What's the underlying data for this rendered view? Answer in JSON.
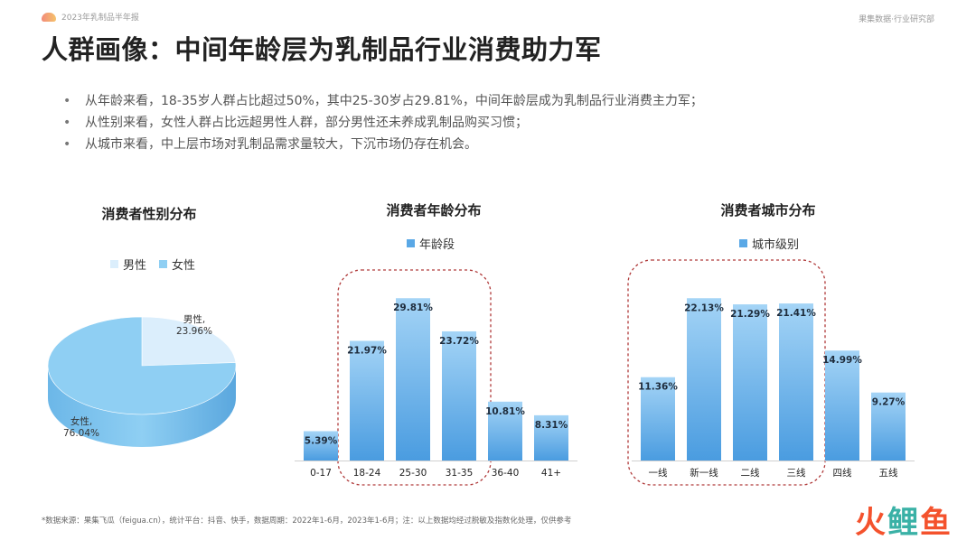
{
  "header": {
    "report_name": "2023年乳制品半年报",
    "org": "果集数据·行业研究部"
  },
  "title": "人群画像：中间年龄层为乳制品行业消费助力军",
  "bullets": [
    "从年龄来看，18-35岁人群占比超过50%，其中25-30岁占29.81%，中间年龄层成为乳制品行业消费主力军；",
    "从性别来看，女性人群占比远超男性人群，部分男性还未养成乳制品购买习惯；",
    "从城市来看，中上层市场对乳制品需求量较大，下沉市场仍存在机会。"
  ],
  "colors": {
    "female": "#8fcff3",
    "male": "#dbeefc",
    "bar_top": "#9fd1f5",
    "bar_bottom": "#4a9fe0",
    "highlight": "#b03a3a"
  },
  "chart_data": [
    {
      "type": "pie",
      "title": "消费者性别分布",
      "legend_position": "top",
      "categories": [
        "男性",
        "女性"
      ],
      "values": [
        23.96,
        76.04
      ],
      "labels": [
        {
          "name": "男性,",
          "value": "23.96%"
        },
        {
          "name": "女性,",
          "value": "76.04%"
        }
      ]
    },
    {
      "type": "bar",
      "title": "消费者年龄分布",
      "legend_position": "top",
      "series": [
        {
          "name": "年龄段",
          "values": [
            5.39,
            21.97,
            29.81,
            23.72,
            10.81,
            8.31
          ]
        }
      ],
      "categories": [
        "0-17",
        "18-24",
        "25-30",
        "31-35",
        "36-40",
        "41+"
      ],
      "value_labels": [
        "5.39%",
        "21.97%",
        "29.81%",
        "23.72%",
        "10.81%",
        "8.31%"
      ],
      "ylim": [
        0,
        33
      ],
      "highlight_range": [
        1,
        3
      ]
    },
    {
      "type": "bar",
      "title": "消费者城市分布",
      "legend_position": "top",
      "series": [
        {
          "name": "城市级别",
          "values": [
            11.36,
            22.13,
            21.29,
            21.41,
            14.99,
            9.27
          ]
        }
      ],
      "categories": [
        "一线",
        "新一线",
        "二线",
        "三线",
        "四线",
        "五线"
      ],
      "value_labels": [
        "11.36%",
        "22.13%",
        "21.29%",
        "21.41%",
        "14.99%",
        "9.27%"
      ],
      "ylim": [
        0,
        24.5
      ],
      "highlight_range": [
        0,
        3
      ]
    }
  ],
  "footer": "*数据来源：果集飞瓜（feigua.cn），统计平台：抖音、快手，数据周期：2022年1-6月，2023年1-6月；注：以上数据均经过脱敏及指数化处理，仅供参考",
  "watermark": [
    "火",
    "鲤",
    "鱼"
  ]
}
